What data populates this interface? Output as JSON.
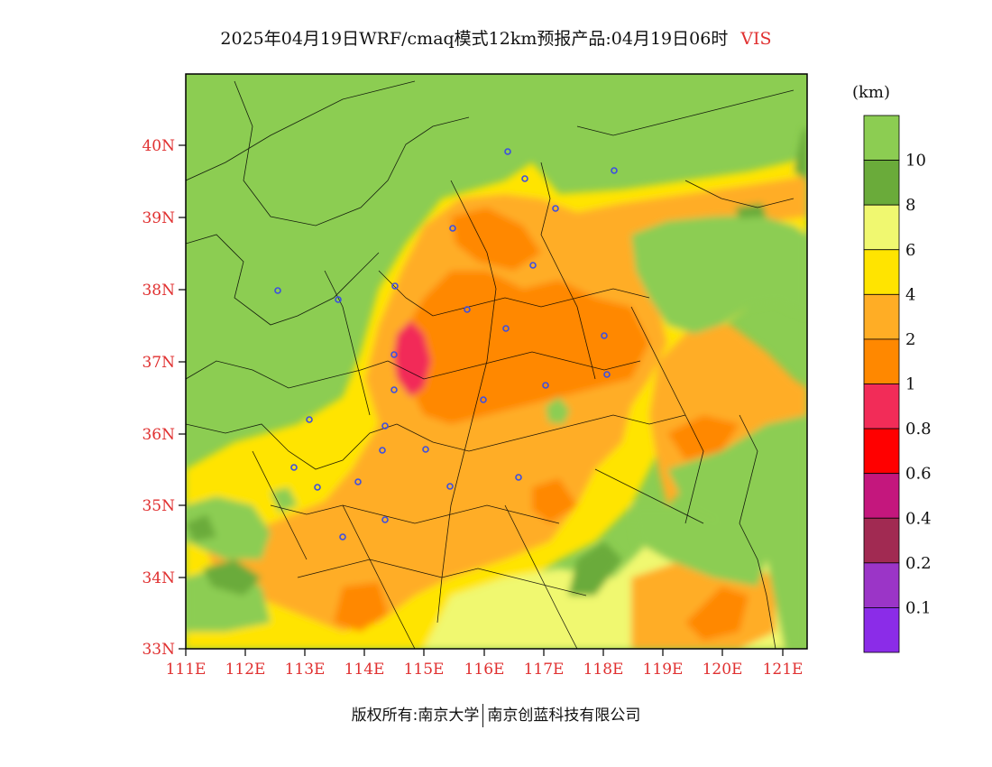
{
  "title": {
    "main": "2025年04月19日WRF/cmaq模式12km预报产品:04月19日06时",
    "variable": "VIS"
  },
  "colorbar": {
    "unit": "(km)",
    "boundary_labels": [
      "10",
      "8",
      "6",
      "4",
      "2",
      "1",
      "0.8",
      "0.6",
      "0.4",
      "0.2",
      "0.1"
    ],
    "colors": [
      "#8ccd52",
      "#6aab3a",
      "#f0f870",
      "#ffe400",
      "#ffad25",
      "#ff8800",
      "#f22c58",
      "#ff0000",
      "#c4177d",
      "#a12a52",
      "#9b35c7",
      "#8b2ce8"
    ]
  },
  "axes": {
    "lat_labels": [
      "40N",
      "39N",
      "38N",
      "37N",
      "36N",
      "35N",
      "34N",
      "33N"
    ],
    "lon_labels": [
      "111E",
      "112E",
      "113E",
      "114E",
      "115E",
      "116E",
      "117E",
      "118E",
      "119E",
      "120E",
      "121E"
    ]
  },
  "footer": {
    "left": "版权所有:南京大学",
    "right": "南京创蓝科技有限公司"
  }
}
